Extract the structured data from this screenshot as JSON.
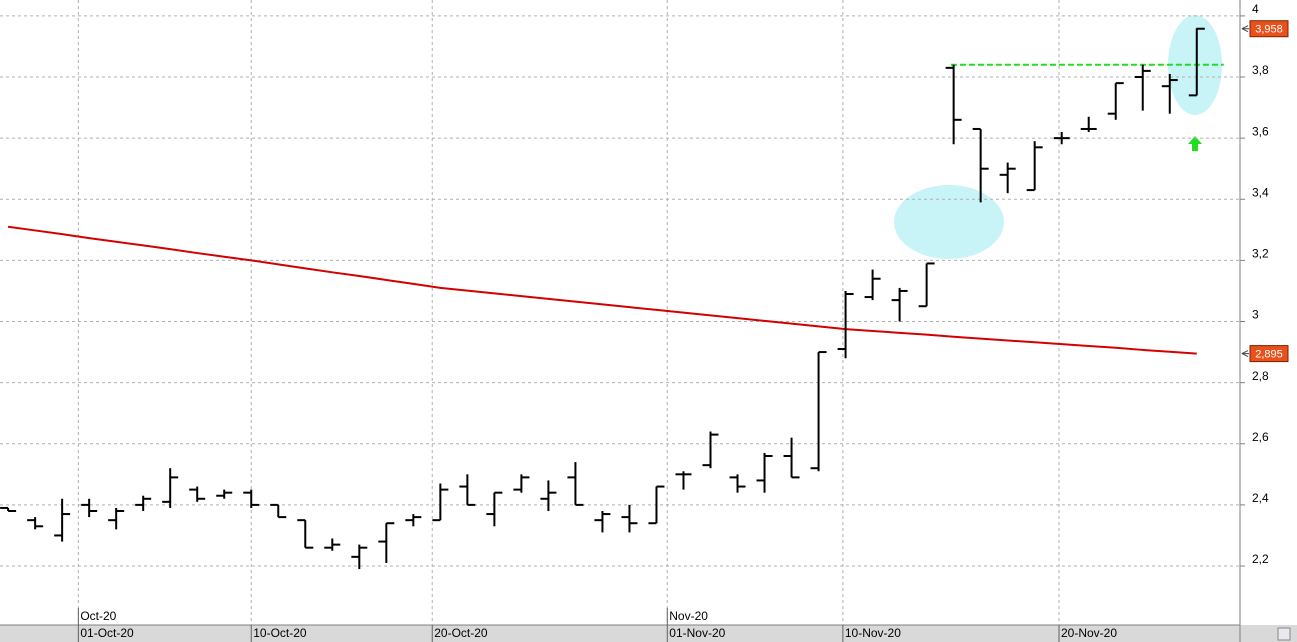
{
  "chart_data": {
    "type": "ohlc",
    "open": [
      2.39,
      2.35,
      2.3,
      2.4,
      2.35,
      2.4,
      2.41,
      2.45,
      2.43,
      2.44,
      2.4,
      2.35,
      2.26,
      2.23,
      2.28,
      2.35,
      2.35,
      2.46,
      2.37,
      2.45,
      2.42,
      2.49,
      2.35,
      2.36,
      2.34,
      2.5,
      2.53,
      2.49,
      2.48,
      2.56,
      2.52,
      2.91,
      3.08,
      3.07,
      3.05,
      3.83,
      3.63,
      3.48,
      3.43,
      3.6,
      3.63,
      3.68,
      3.8,
      3.77,
      3.74
    ],
    "high": [
      2.39,
      2.36,
      2.42,
      2.42,
      2.39,
      2.43,
      2.52,
      2.46,
      2.45,
      2.45,
      2.4,
      2.35,
      2.29,
      2.27,
      2.34,
      2.37,
      2.47,
      2.5,
      2.44,
      2.5,
      2.48,
      2.54,
      2.38,
      2.4,
      2.46,
      2.51,
      2.64,
      2.5,
      2.57,
      2.62,
      2.9,
      3.1,
      3.17,
      3.11,
      3.19,
      3.84,
      3.63,
      3.52,
      3.59,
      3.62,
      3.67,
      3.78,
      3.84,
      3.81,
      3.96
    ],
    "low": [
      2.38,
      2.32,
      2.28,
      2.36,
      2.32,
      2.38,
      2.39,
      2.41,
      2.42,
      2.39,
      2.36,
      2.26,
      2.25,
      2.19,
      2.21,
      2.33,
      2.35,
      2.4,
      2.33,
      2.44,
      2.38,
      2.4,
      2.31,
      2.31,
      2.34,
      2.45,
      2.52,
      2.44,
      2.44,
      2.49,
      2.51,
      2.88,
      3.07,
      3.0,
      3.05,
      3.58,
      3.39,
      3.42,
      3.43,
      3.58,
      3.62,
      3.66,
      3.69,
      3.68,
      3.74
    ],
    "close": [
      2.38,
      2.33,
      2.37,
      2.38,
      2.38,
      2.42,
      2.49,
      2.42,
      2.44,
      2.4,
      2.36,
      2.26,
      2.27,
      2.26,
      2.34,
      2.36,
      2.45,
      2.4,
      2.44,
      2.49,
      2.44,
      2.4,
      2.37,
      2.34,
      2.46,
      2.5,
      2.63,
      2.46,
      2.56,
      2.49,
      2.9,
      3.09,
      3.14,
      3.1,
      3.19,
      3.66,
      3.5,
      3.5,
      3.57,
      3.6,
      3.63,
      3.78,
      3.82,
      3.79,
      3.958
    ],
    "bar_color": "#000000",
    "moving_average": {
      "color": "#d40000",
      "values": [
        3.31,
        3.298,
        3.286,
        3.273,
        3.261,
        3.249,
        3.237,
        3.224,
        3.212,
        3.2,
        3.187,
        3.174,
        3.161,
        3.149,
        3.136,
        3.123,
        3.11,
        3.101,
        3.092,
        3.083,
        3.074,
        3.065,
        3.056,
        3.047,
        3.038,
        3.029,
        3.02,
        3.011,
        3.002,
        2.993,
        2.984,
        2.975,
        2.969,
        2.963,
        2.957,
        2.95,
        2.944,
        2.938,
        2.932,
        2.926,
        2.92,
        2.914,
        2.907,
        2.901,
        2.895
      ]
    },
    "resistance": {
      "color": "#22dd22",
      "value": 3.84,
      "from": 34.9,
      "to": 45.0
    },
    "price_tags": [
      {
        "value": 3.958,
        "label": "3,958"
      },
      {
        "value": 2.895,
        "label": "2,895"
      }
    ],
    "price_tag_color": "#e8501c",
    "xlim": [
      -0.3,
      45.6
    ],
    "xticks": [
      {
        "value": 2.6,
        "label": "01-Oct-20"
      },
      {
        "value": 9.0,
        "label": "10-Oct-20"
      },
      {
        "value": 15.7,
        "label": "20-Oct-20"
      },
      {
        "value": 24.4,
        "label": "01-Nov-20"
      },
      {
        "value": 30.9,
        "label": "10-Nov-20"
      },
      {
        "value": 38.9,
        "label": "20-Nov-20"
      }
    ],
    "month_ticks": [
      {
        "value": 2.6,
        "label": "Oct-20"
      },
      {
        "value": 24.4,
        "label": "Nov-20"
      }
    ],
    "ylim": [
      2.007,
      4.052
    ],
    "yticks": [
      {
        "value": 2.2,
        "label": "2,2"
      },
      {
        "value": 2.4,
        "label": "2,4"
      },
      {
        "value": 2.6,
        "label": "2,6"
      },
      {
        "value": 2.8,
        "label": "2,8"
      },
      3,
      {
        "value": 3.2,
        "label": "3,2"
      },
      {
        "value": 3.4,
        "label": "3,4"
      },
      {
        "value": 3.6,
        "label": "3,6"
      },
      {
        "value": 3.8,
        "label": "3,8"
      },
      4
    ],
    "grid": true
  }
}
